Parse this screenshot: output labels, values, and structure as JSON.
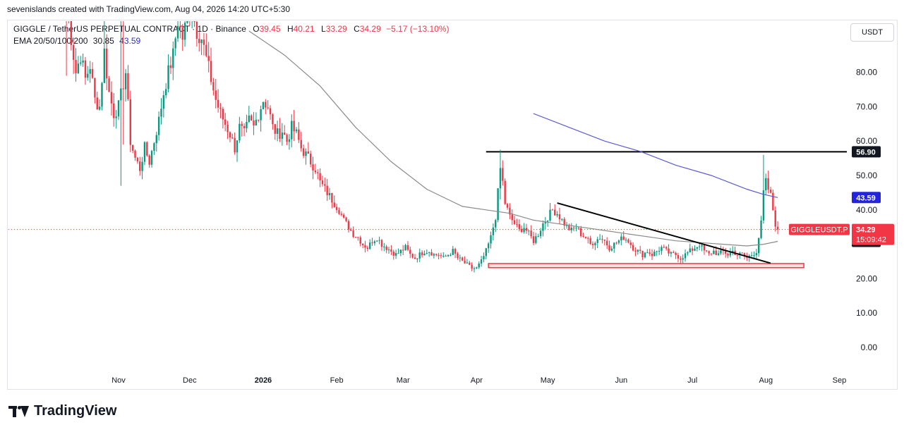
{
  "header": {
    "caption": "sevenislands created with TradingView.com, Aug 04, 2026 14:20 UTC+5:30"
  },
  "legend": {
    "symbol": "GIGGLE / TetherUS PERPETUAL CONTRACT · 1D · Binance",
    "open_label": "O",
    "open": "39.45",
    "high_label": "H",
    "high": "40.21",
    "low_label": "L",
    "low": "33.29",
    "close_label": "C",
    "close": "34.29",
    "change": "−5.17 (−13.10%)",
    "ema_label": "EMA 20/50/100/200",
    "ema1": "30.85",
    "ema2": "43.59"
  },
  "currency_button": "USDT",
  "footer": {
    "brand": "TradingView"
  },
  "colors": {
    "up": "#089981",
    "down": "#f23645",
    "ema_gray": "#8a8a8a",
    "ema_blue": "#5b5bd6",
    "resistance": "#000000",
    "support_zone": "#f23645"
  },
  "chart_data": {
    "type": "candlestick",
    "title": "GIGGLE / TetherUS PERPETUAL CONTRACT · 1D · Binance",
    "y_ticks": [
      "80.00",
      "70.00",
      "60.00",
      "50.00",
      "40.00",
      "30.00",
      "20.00",
      "10.00",
      "0.00"
    ],
    "y_tick_values": [
      80,
      70,
      60,
      50,
      40,
      30,
      20,
      10,
      0
    ],
    "ylim": [
      -5,
      92
    ],
    "x_ticks": [
      {
        "label": "Nov",
        "day": 0,
        "bold": false
      },
      {
        "label": "Dec",
        "day": 30,
        "bold": false
      },
      {
        "label": "2026",
        "day": 61,
        "bold": true
      },
      {
        "label": "Feb",
        "day": 92,
        "bold": false
      },
      {
        "label": "Mar",
        "day": 120,
        "bold": false
      },
      {
        "label": "Apr",
        "day": 151,
        "bold": false
      },
      {
        "label": "May",
        "day": 181,
        "bold": false
      },
      {
        "label": "Jun",
        "day": 212,
        "bold": false
      },
      {
        "label": "Jul",
        "day": 242,
        "bold": false
      },
      {
        "label": "Aug",
        "day": 273,
        "bold": false
      },
      {
        "label": "Sep",
        "day": 304,
        "bold": false
      }
    ],
    "last_price": 34.29,
    "price_labels": [
      {
        "text": "56.90",
        "value": 56.9,
        "style": "black"
      },
      {
        "text": "43.59",
        "value": 43.59,
        "style": "blue"
      },
      {
        "text": "30.85",
        "value": 30.85,
        "style": "black"
      }
    ],
    "current_symbol_label": "GIGGLEUSDT.P",
    "current_price_label": "34.29",
    "countdown": "15:09:42",
    "resistance_level": 56.9,
    "support_zone": [
      23.2,
      24.4
    ],
    "series_anchors": [
      [
        -22,
        100
      ],
      [
        -20,
        90
      ],
      [
        -18,
        80
      ],
      [
        -16,
        85
      ],
      [
        -14,
        78
      ],
      [
        -12,
        82
      ],
      [
        -10,
        72
      ],
      [
        -8,
        70
      ],
      [
        -6,
        86
      ],
      [
        -4,
        74
      ],
      [
        -2,
        68
      ],
      [
        0,
        70
      ],
      [
        3,
        80
      ],
      [
        5,
        60
      ],
      [
        7,
        55
      ],
      [
        9,
        52
      ],
      [
        11,
        58
      ],
      [
        13,
        54
      ],
      [
        15,
        60
      ],
      [
        17,
        66
      ],
      [
        19,
        74
      ],
      [
        21,
        80
      ],
      [
        23,
        85
      ],
      [
        25,
        95
      ],
      [
        27,
        90
      ],
      [
        29,
        96
      ],
      [
        31,
        98
      ],
      [
        33,
        92
      ],
      [
        35,
        90
      ],
      [
        37,
        84
      ],
      [
        39,
        78
      ],
      [
        41,
        72
      ],
      [
        43,
        68
      ],
      [
        45,
        65
      ],
      [
        47,
        62
      ],
      [
        49,
        58
      ],
      [
        51,
        64
      ],
      [
        53,
        62
      ],
      [
        55,
        66
      ],
      [
        57,
        64
      ],
      [
        59,
        68
      ],
      [
        61,
        72
      ],
      [
        63,
        70
      ],
      [
        65,
        64
      ],
      [
        67,
        62
      ],
      [
        69,
        63
      ],
      [
        71,
        60
      ],
      [
        73,
        64
      ],
      [
        75,
        62
      ],
      [
        77,
        58
      ],
      [
        79,
        56
      ],
      [
        81,
        54
      ],
      [
        83,
        52
      ],
      [
        85,
        48
      ],
      [
        87,
        46
      ],
      [
        89,
        44
      ],
      [
        91,
        42
      ],
      [
        93,
        40
      ],
      [
        95,
        37
      ],
      [
        97,
        35
      ],
      [
        99,
        33
      ],
      [
        101,
        32
      ],
      [
        103,
        30
      ],
      [
        105,
        29
      ],
      [
        107,
        31
      ],
      [
        109,
        32
      ],
      [
        111,
        30
      ],
      [
        113,
        29
      ],
      [
        115,
        28
      ],
      [
        117,
        27
      ],
      [
        119,
        28
      ],
      [
        121,
        29
      ],
      [
        123,
        27
      ],
      [
        125,
        26
      ],
      [
        127,
        27
      ],
      [
        129,
        28
      ],
      [
        131,
        28
      ],
      [
        133,
        27
      ],
      [
        135,
        27
      ],
      [
        137,
        26
      ],
      [
        139,
        27
      ],
      [
        141,
        28
      ],
      [
        143,
        26
      ],
      [
        145,
        25
      ],
      [
        147,
        24
      ],
      [
        149,
        23
      ],
      [
        151,
        23
      ],
      [
        153,
        25
      ],
      [
        155,
        28
      ],
      [
        157,
        32
      ],
      [
        159,
        38
      ],
      [
        160,
        45
      ],
      [
        161,
        52
      ],
      [
        162,
        48
      ],
      [
        163,
        42
      ],
      [
        165,
        38
      ],
      [
        167,
        36
      ],
      [
        169,
        34
      ],
      [
        171,
        35
      ],
      [
        173,
        33
      ],
      [
        175,
        31
      ],
      [
        177,
        33
      ],
      [
        179,
        36
      ],
      [
        181,
        38
      ],
      [
        183,
        40
      ],
      [
        185,
        39
      ],
      [
        187,
        37
      ],
      [
        189,
        35
      ],
      [
        191,
        34
      ],
      [
        193,
        35
      ],
      [
        195,
        33
      ],
      [
        197,
        32
      ],
      [
        199,
        30
      ],
      [
        201,
        31
      ],
      [
        203,
        32
      ],
      [
        205,
        31
      ],
      [
        207,
        29
      ],
      [
        209,
        30
      ],
      [
        211,
        31
      ],
      [
        213,
        32
      ],
      [
        215,
        31
      ],
      [
        217,
        29
      ],
      [
        219,
        28
      ],
      [
        221,
        27
      ],
      [
        223,
        28
      ],
      [
        225,
        27
      ],
      [
        227,
        28
      ],
      [
        229,
        29
      ],
      [
        231,
        28
      ],
      [
        233,
        27
      ],
      [
        235,
        27
      ],
      [
        237,
        26
      ],
      [
        239,
        27
      ],
      [
        241,
        28
      ],
      [
        243,
        29
      ],
      [
        245,
        30
      ],
      [
        247,
        28
      ],
      [
        249,
        27
      ],
      [
        251,
        28
      ],
      [
        253,
        27
      ],
      [
        255,
        28
      ],
      [
        257,
        27
      ],
      [
        259,
        28
      ],
      [
        261,
        27
      ],
      [
        263,
        27
      ],
      [
        265,
        26
      ],
      [
        267,
        27
      ],
      [
        269,
        28
      ],
      [
        271,
        36
      ],
      [
        272,
        45
      ],
      [
        273,
        48
      ],
      [
        274,
        46
      ],
      [
        275,
        44
      ],
      [
        276,
        40
      ],
      [
        277,
        36
      ],
      [
        278,
        34.29
      ]
    ],
    "ema_gray_points": [
      [
        55,
        92
      ],
      [
        70,
        85
      ],
      [
        85,
        76
      ],
      [
        100,
        64
      ],
      [
        115,
        54
      ],
      [
        130,
        46
      ],
      [
        145,
        41
      ],
      [
        155,
        40
      ],
      [
        165,
        39
      ],
      [
        175,
        37
      ],
      [
        185,
        36
      ],
      [
        195,
        35
      ],
      [
        205,
        34
      ],
      [
        215,
        33
      ],
      [
        225,
        32
      ],
      [
        235,
        31
      ],
      [
        245,
        30.5
      ],
      [
        255,
        30
      ],
      [
        265,
        29.5
      ],
      [
        272,
        30
      ],
      [
        278,
        30.85
      ]
    ],
    "ema_blue_points": [
      [
        175,
        68
      ],
      [
        190,
        64
      ],
      [
        205,
        60
      ],
      [
        220,
        57
      ],
      [
        235,
        53
      ],
      [
        250,
        50
      ],
      [
        265,
        46
      ],
      [
        272,
        44.5
      ],
      [
        278,
        43.59
      ]
    ],
    "trendline": [
      [
        185,
        42
      ],
      [
        275,
        24.5
      ]
    ],
    "wicks": [
      {
        "day": -22,
        "high": 100,
        "low": 79
      },
      {
        "day": -6,
        "high": 100,
        "low": 79
      },
      {
        "day": 1,
        "high": 100,
        "low": 47
      },
      {
        "day": 2,
        "high": 100,
        "low": 59
      },
      {
        "day": 161,
        "high": 57.5,
        "low": 43
      },
      {
        "day": 272,
        "high": 56,
        "low": 36
      }
    ]
  }
}
